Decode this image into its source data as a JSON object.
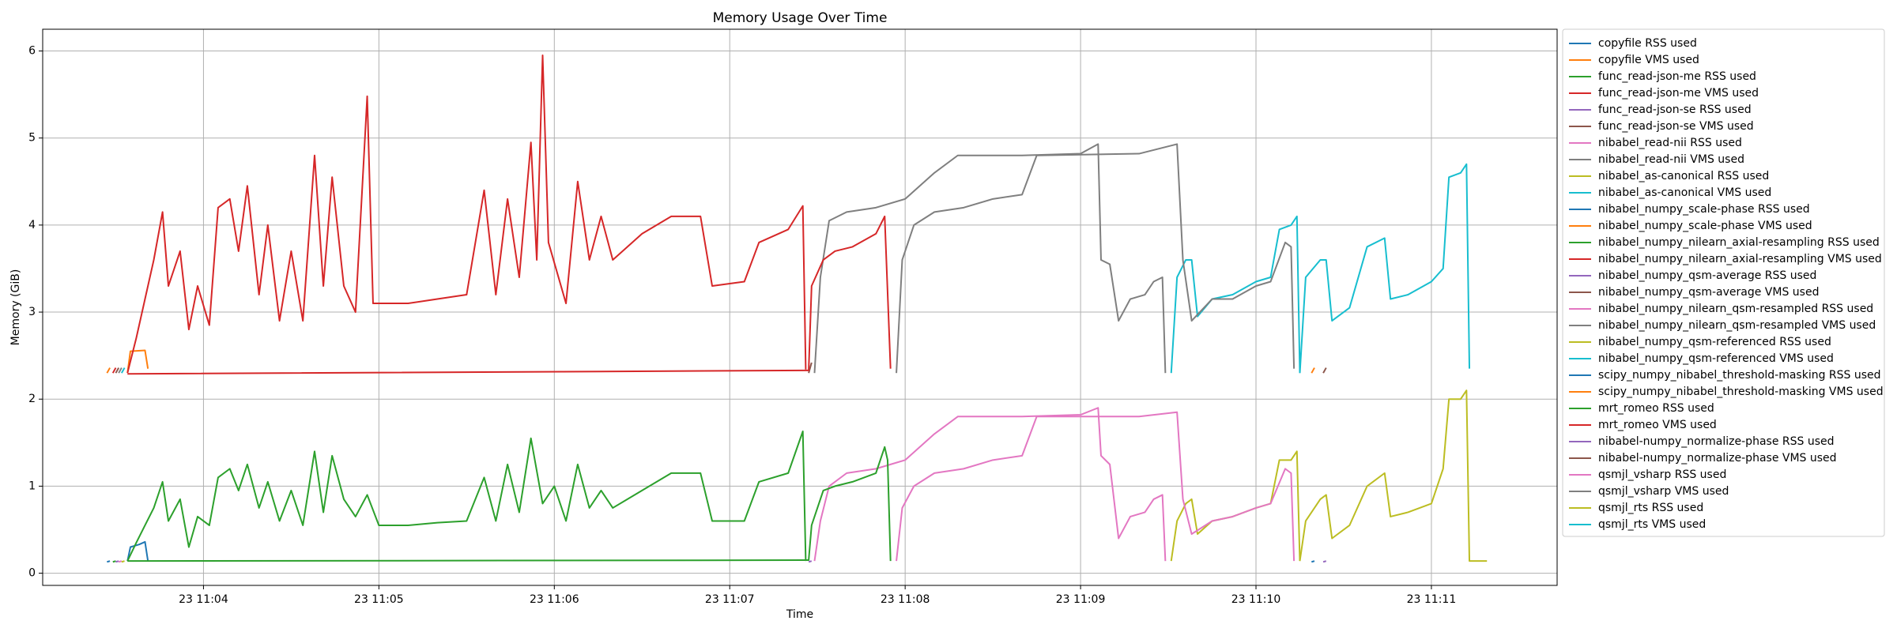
{
  "chart_data": {
    "type": "line",
    "title": "Memory Usage Over Time",
    "x_label": "Time",
    "y_label": "Memory (GiB)",
    "xlim": [
      "23 11:03:05",
      "23 11:11:43"
    ],
    "xticks": [
      "23 11:04",
      "23 11:05",
      "23 11:06",
      "23 11:07",
      "23 11:08",
      "23 11:09",
      "23 11:10",
      "23 11:11"
    ],
    "ylim": [
      -0.14,
      6.25
    ],
    "yticks": [
      0,
      1,
      2,
      3,
      4,
      5,
      6
    ],
    "grid": true,
    "legend": "right",
    "series": [
      {
        "name": "copyfile RSS used",
        "color": "#1f77b4",
        "x": [
          "23 11:03:27",
          "23 11:03:28"
        ],
        "values": [
          0.13,
          0.14
        ]
      },
      {
        "name": "copyfile VMS used",
        "color": "#ff7f0e",
        "x": [
          "23 11:03:27",
          "23 11:03:28"
        ],
        "values": [
          2.3,
          2.36
        ]
      },
      {
        "name": "func_read-json-me RSS used",
        "color": "#2ca02c",
        "x": [
          "23 11:03:29",
          "23 11:03:30"
        ],
        "values": [
          0.13,
          0.14
        ]
      },
      {
        "name": "func_read-json-me VMS used",
        "color": "#d62728",
        "x": [
          "23 11:03:29",
          "23 11:03:30"
        ],
        "values": [
          2.3,
          2.36
        ]
      },
      {
        "name": "func_read-json-se RSS used",
        "color": "#9467bd",
        "x": [
          "23 11:03:30",
          "23 11:03:31"
        ],
        "values": [
          0.13,
          0.14
        ]
      },
      {
        "name": "func_read-json-se VMS used",
        "color": "#8c564b",
        "x": [
          "23 11:03:30",
          "23 11:03:31"
        ],
        "values": [
          2.3,
          2.36
        ]
      },
      {
        "name": "nibabel_read-nii RSS used",
        "color": "#e377c2",
        "x": [
          "23 11:03:31",
          "23 11:03:32"
        ],
        "values": [
          0.13,
          0.14
        ]
      },
      {
        "name": "nibabel_read-nii VMS used",
        "color": "#7f7f7f",
        "x": [
          "23 11:03:31",
          "23 11:03:32"
        ],
        "values": [
          2.3,
          2.36
        ]
      },
      {
        "name": "nibabel_as-canonical RSS used",
        "color": "#bcbd22",
        "x": [
          "23 11:03:32",
          "23 11:03:33"
        ],
        "values": [
          0.13,
          0.14
        ]
      },
      {
        "name": "nibabel_as-canonical VMS used",
        "color": "#17becf",
        "x": [
          "23 11:03:32",
          "23 11:03:33"
        ],
        "values": [
          2.3,
          2.36
        ]
      },
      {
        "name": "nibabel_numpy_scale-phase RSS used",
        "color": "#1f77b4",
        "x": [
          "23 11:03:34",
          "23 11:03:35",
          "23 11:03:38",
          "23 11:03:40",
          "23 11:03:41"
        ],
        "values": [
          0.14,
          0.3,
          0.33,
          0.36,
          0.14
        ]
      },
      {
        "name": "nibabel_numpy_scale-phase VMS used",
        "color": "#ff7f0e",
        "x": [
          "23 11:03:34",
          "23 11:03:35",
          "23 11:03:40",
          "23 11:03:41"
        ],
        "values": [
          2.3,
          2.55,
          2.56,
          2.35
        ]
      },
      {
        "name": "nibabel_numpy_nilearn_axial-resampling RSS used",
        "color": "#2ca02c",
        "x": [
          "23 11:03:34",
          "23 11:03:37",
          "23 11:03:40",
          "23 11:03:43",
          "23 11:03:46",
          "23 11:03:48",
          "23 11:03:52",
          "23 11:03:55",
          "23 11:03:58",
          "23 11:04:02",
          "23 11:04:05",
          "23 11:04:09",
          "23 11:04:12",
          "23 11:04:15",
          "23 11:04:19",
          "23 11:04:22",
          "23 11:04:26",
          "23 11:04:30",
          "23 11:04:34",
          "23 11:04:38",
          "23 11:04:41",
          "23 11:04:44",
          "23 11:04:48",
          "23 11:04:52",
          "23 11:04:56",
          "23 11:05:00",
          "23 11:05:10",
          "23 11:05:20",
          "23 11:05:30",
          "23 11:05:36",
          "23 11:05:40",
          "23 11:05:44",
          "23 11:05:48",
          "23 11:05:52",
          "23 11:05:56",
          "23 11:06:00",
          "23 11:06:04",
          "23 11:06:08",
          "23 11:06:12",
          "23 11:06:16",
          "23 11:06:20",
          "23 11:06:30",
          "23 11:06:40",
          "23 11:06:50",
          "23 11:06:54",
          "23 11:07:05",
          "23 11:07:10",
          "23 11:07:20",
          "23 11:07:25",
          "23 11:07:26"
        ],
        "values": [
          0.14,
          0.35,
          0.55,
          0.75,
          1.05,
          0.6,
          0.85,
          0.3,
          0.65,
          0.55,
          1.1,
          1.2,
          0.95,
          1.25,
          0.75,
          1.05,
          0.6,
          0.95,
          0.55,
          1.4,
          0.7,
          1.35,
          0.85,
          0.65,
          0.9,
          0.55,
          0.55,
          0.58,
          0.6,
          1.1,
          0.6,
          1.25,
          0.7,
          1.55,
          0.8,
          1.0,
          0.6,
          1.25,
          0.75,
          0.95,
          0.75,
          0.95,
          1.15,
          1.15,
          0.6,
          0.6,
          1.05,
          1.15,
          1.63,
          0.14
        ]
      },
      {
        "name": "nibabel_numpy_nilearn_axial-resampling VMS used",
        "color": "#d62728",
        "x": [
          "23 11:03:34",
          "23 11:03:37",
          "23 11:03:40",
          "23 11:03:43",
          "23 11:03:46",
          "23 11:03:48",
          "23 11:03:52",
          "23 11:03:55",
          "23 11:03:58",
          "23 11:04:02",
          "23 11:04:05",
          "23 11:04:09",
          "23 11:04:12",
          "23 11:04:15",
          "23 11:04:19",
          "23 11:04:22",
          "23 11:04:26",
          "23 11:04:30",
          "23 11:04:34",
          "23 11:04:38",
          "23 11:04:41",
          "23 11:04:44",
          "23 11:04:48",
          "23 11:04:52",
          "23 11:04:56",
          "23 11:04:58",
          "23 11:05:10",
          "23 11:05:20",
          "23 11:05:30",
          "23 11:05:36",
          "23 11:05:40",
          "23 11:05:44",
          "23 11:05:48",
          "23 11:05:52",
          "23 11:05:54",
          "23 11:05:56",
          "23 11:05:58",
          "23 11:06:04",
          "23 11:06:08",
          "23 11:06:12",
          "23 11:06:16",
          "23 11:06:20",
          "23 11:06:30",
          "23 11:06:40",
          "23 11:06:50",
          "23 11:06:54",
          "23 11:07:05",
          "23 11:07:10",
          "23 11:07:20",
          "23 11:07:25",
          "23 11:07:26"
        ],
        "values": [
          2.3,
          2.7,
          3.15,
          3.6,
          4.15,
          3.3,
          3.7,
          2.8,
          3.3,
          2.85,
          4.2,
          4.3,
          3.7,
          4.45,
          3.2,
          4.0,
          2.9,
          3.7,
          2.9,
          4.8,
          3.3,
          4.55,
          3.3,
          3.0,
          5.48,
          3.1,
          3.1,
          3.15,
          3.2,
          4.4,
          3.2,
          4.3,
          3.4,
          4.95,
          3.6,
          5.95,
          3.8,
          3.1,
          4.5,
          3.6,
          4.1,
          3.6,
          3.9,
          4.1,
          4.1,
          3.3,
          3.35,
          3.8,
          3.95,
          4.22,
          2.34
        ]
      },
      {
        "name": "nibabel_numpy_qsm-average RSS used",
        "color": "#9467bd",
        "x": [
          "23 11:07:27",
          "23 11:07:28"
        ],
        "values": [
          0.13,
          0.14
        ]
      },
      {
        "name": "nibabel_numpy_qsm-average VMS used",
        "color": "#8c564b",
        "x": [
          "23 11:07:27",
          "23 11:07:28"
        ],
        "values": [
          2.3,
          2.42
        ]
      },
      {
        "name": "nibabel_numpy_nilearn_qsm-resampled RSS used",
        "color": "#e377c2",
        "x": [
          "23 11:07:29",
          "23 11:07:31",
          "23 11:07:34",
          "23 11:07:40",
          "23 11:07:50",
          "23 11:08:00",
          "23 11:08:10",
          "23 11:08:18",
          "23 11:08:40",
          "23 11:09:00",
          "23 11:09:06",
          "23 11:09:07",
          "23 11:09:10",
          "23 11:09:13",
          "23 11:09:17",
          "23 11:09:22",
          "23 11:09:25",
          "23 11:09:28",
          "23 11:09:29"
        ],
        "values": [
          0.14,
          0.6,
          1.0,
          1.15,
          1.2,
          1.3,
          1.6,
          1.8,
          1.8,
          1.82,
          1.9,
          1.35,
          1.25,
          0.4,
          0.65,
          0.7,
          0.85,
          0.9,
          0.14
        ]
      },
      {
        "name": "nibabel_numpy_nilearn_qsm-resampled VMS used",
        "color": "#7f7f7f",
        "x": [
          "23 11:07:29",
          "23 11:07:31",
          "23 11:07:34",
          "23 11:07:40",
          "23 11:07:50",
          "23 11:08:00",
          "23 11:08:10",
          "23 11:08:18",
          "23 11:08:40",
          "23 11:09:00",
          "23 11:09:06",
          "23 11:09:07",
          "23 11:09:10",
          "23 11:09:13",
          "23 11:09:17",
          "23 11:09:22",
          "23 11:09:25",
          "23 11:09:28",
          "23 11:09:29"
        ],
        "values": [
          2.3,
          3.4,
          4.05,
          4.15,
          4.2,
          4.3,
          4.6,
          4.8,
          4.8,
          4.82,
          4.93,
          3.6,
          3.55,
          2.9,
          3.15,
          3.2,
          3.35,
          3.4,
          2.3
        ]
      },
      {
        "name": "nibabel_numpy_qsm-referenced RSS used",
        "color": "#bcbd22",
        "x": [
          "23 11:09:31",
          "23 11:09:33",
          "23 11:09:36",
          "23 11:09:38",
          "23 11:09:40",
          "23 11:09:45",
          "23 11:09:52",
          "23 11:10:00",
          "23 11:10:05",
          "23 11:10:08",
          "23 11:10:12",
          "23 11:10:14",
          "23 11:10:15"
        ],
        "values": [
          0.14,
          0.6,
          0.8,
          0.85,
          0.45,
          0.6,
          0.65,
          0.75,
          0.8,
          1.3,
          1.3,
          1.4,
          0.14
        ]
      },
      {
        "name": "nibabel_numpy_qsm-referenced VMS used",
        "color": "#17becf",
        "x": [
          "23 11:09:31",
          "23 11:09:33",
          "23 11:09:36",
          "23 11:09:38",
          "23 11:09:40",
          "23 11:09:45",
          "23 11:09:52",
          "23 11:10:00",
          "23 11:10:05",
          "23 11:10:08",
          "23 11:10:12",
          "23 11:10:14",
          "23 11:10:15"
        ],
        "values": [
          2.3,
          3.4,
          3.6,
          3.6,
          2.95,
          3.15,
          3.2,
          3.35,
          3.4,
          3.95,
          4.0,
          4.1,
          2.3
        ]
      },
      {
        "name": "scipy_numpy_nibabel_threshold-masking RSS used",
        "color": "#1f77b4",
        "x": [
          "23 11:10:19",
          "23 11:10:20"
        ],
        "values": [
          0.13,
          0.14
        ]
      },
      {
        "name": "scipy_numpy_nibabel_threshold-masking VMS used",
        "color": "#ff7f0e",
        "x": [
          "23 11:10:19",
          "23 11:10:20"
        ],
        "values": [
          2.3,
          2.36
        ]
      },
      {
        "name": "mrt_romeo RSS used",
        "color": "#2ca02c",
        "x": [
          "23 11:03:34",
          "23 11:07:27",
          "23 11:07:28",
          "23 11:07:32",
          "23 11:07:36",
          "23 11:07:42",
          "23 11:07:50",
          "23 11:07:53",
          "23 11:07:54",
          "23 11:07:55"
        ],
        "values": [
          0.14,
          0.15,
          0.55,
          0.95,
          1.0,
          1.05,
          1.15,
          1.45,
          1.3,
          0.14
        ]
      },
      {
        "name": "mrt_romeo VMS used",
        "color": "#d62728",
        "x": [
          "23 11:03:34",
          "23 11:07:27",
          "23 11:07:28",
          "23 11:07:32",
          "23 11:07:36",
          "23 11:07:42",
          "23 11:07:50",
          "23 11:07:53",
          "23 11:07:55"
        ],
        "values": [
          2.29,
          2.33,
          3.3,
          3.6,
          3.7,
          3.75,
          3.9,
          4.1,
          2.35
        ]
      },
      {
        "name": "nibabel-numpy_normalize-phase RSS used",
        "color": "#9467bd",
        "x": [
          "23 11:10:23",
          "23 11:10:24"
        ],
        "values": [
          0.13,
          0.14
        ]
      },
      {
        "name": "nibabel-numpy_normalize-phase VMS used",
        "color": "#8c564b",
        "x": [
          "23 11:10:23",
          "23 11:10:24"
        ],
        "values": [
          2.3,
          2.36
        ]
      },
      {
        "name": "qsmjl_vsharp RSS used",
        "color": "#e377c2",
        "x": [
          "23 11:07:57",
          "23 11:07:59",
          "23 11:08:03",
          "23 11:08:10",
          "23 11:08:20",
          "23 11:08:30",
          "23 11:08:40",
          "23 11:08:45",
          "23 11:09:20",
          "23 11:09:33",
          "23 11:09:35",
          "23 11:09:38",
          "23 11:09:45",
          "23 11:09:52",
          "23 11:10:00",
          "23 11:10:05",
          "23 11:10:10",
          "23 11:10:12",
          "23 11:10:13"
        ],
        "values": [
          0.14,
          0.75,
          1.0,
          1.15,
          1.2,
          1.3,
          1.35,
          1.8,
          1.8,
          1.85,
          0.85,
          0.45,
          0.6,
          0.65,
          0.75,
          0.8,
          1.2,
          1.15,
          0.14
        ]
      },
      {
        "name": "qsmjl_vsharp VMS used",
        "color": "#7f7f7f",
        "x": [
          "23 11:07:57",
          "23 11:07:59",
          "23 11:08:03",
          "23 11:08:10",
          "23 11:08:20",
          "23 11:08:30",
          "23 11:08:40",
          "23 11:08:45",
          "23 11:09:20",
          "23 11:09:33",
          "23 11:09:35",
          "23 11:09:38",
          "23 11:09:45",
          "23 11:09:52",
          "23 11:10:00",
          "23 11:10:05",
          "23 11:10:10",
          "23 11:10:12",
          "23 11:10:13"
        ],
        "values": [
          2.3,
          3.6,
          4.0,
          4.15,
          4.2,
          4.3,
          4.35,
          4.8,
          4.82,
          4.93,
          3.6,
          2.9,
          3.15,
          3.15,
          3.3,
          3.35,
          3.8,
          3.75,
          2.35
        ]
      },
      {
        "name": "qsmjl_rts RSS used",
        "color": "#bcbd22",
        "x": [
          "23 11:10:15",
          "23 11:10:17",
          "23 11:10:22",
          "23 11:10:24",
          "23 11:10:26",
          "23 11:10:32",
          "23 11:10:38",
          "23 11:10:44",
          "23 11:10:46",
          "23 11:10:52",
          "23 11:11:00",
          "23 11:11:04",
          "23 11:11:06",
          "23 11:11:10",
          "23 11:11:12",
          "23 11:11:13",
          "23 11:11:19"
        ],
        "values": [
          0.14,
          0.6,
          0.85,
          0.9,
          0.4,
          0.55,
          1.0,
          1.15,
          0.65,
          0.7,
          0.8,
          1.2,
          2.0,
          2.0,
          2.1,
          0.14,
          0.14
        ]
      },
      {
        "name": "qsmjl_rts VMS used",
        "color": "#17becf",
        "x": [
          "23 11:10:15",
          "23 11:10:17",
          "23 11:10:22",
          "23 11:10:24",
          "23 11:10:26",
          "23 11:10:32",
          "23 11:10:38",
          "23 11:10:44",
          "23 11:10:46",
          "23 11:10:52",
          "23 11:11:00",
          "23 11:11:04",
          "23 11:11:06",
          "23 11:11:10",
          "23 11:11:12",
          "23 11:11:13"
        ],
        "values": [
          2.3,
          3.4,
          3.6,
          3.6,
          2.9,
          3.05,
          3.75,
          3.85,
          3.15,
          3.2,
          3.35,
          3.5,
          4.55,
          4.6,
          4.7,
          2.35
        ]
      }
    ]
  }
}
